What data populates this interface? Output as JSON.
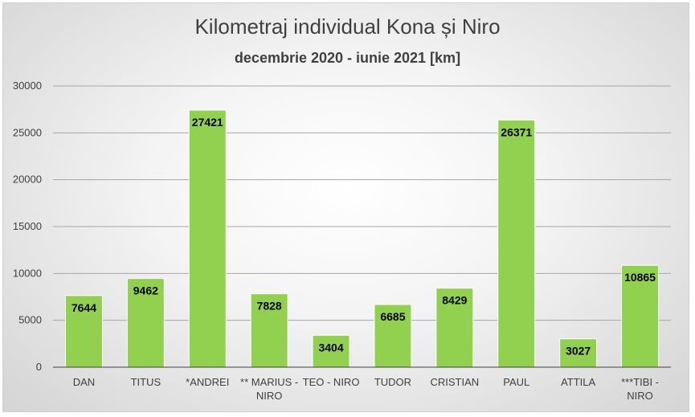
{
  "colors": {
    "bar": "#92d050",
    "grid": "#a6a6a6",
    "axis": "#404040"
  },
  "chart_data": {
    "type": "bar",
    "title": "Kilometraj individual Kona și Niro",
    "subtitle": "decembrie 2020 - iunie 2021 [km]",
    "categories": [
      [
        "DAN"
      ],
      [
        "TITUS"
      ],
      [
        "*ANDREI"
      ],
      [
        "** MARIUS -",
        "NIRO"
      ],
      [
        "TEO - NIRO"
      ],
      [
        "TUDOR"
      ],
      [
        "CRISTIAN"
      ],
      [
        "PAUL"
      ],
      [
        "ATTILA"
      ],
      [
        "***TIBI -",
        "NIRO"
      ]
    ],
    "values": [
      7644,
      9462,
      27421,
      7828,
      3404,
      6685,
      8429,
      26371,
      3027,
      10865
    ],
    "ylim": [
      0,
      30000
    ],
    "yticks": [
      0,
      5000,
      10000,
      15000,
      20000,
      25000,
      30000
    ],
    "grid": true,
    "legend": "none"
  }
}
